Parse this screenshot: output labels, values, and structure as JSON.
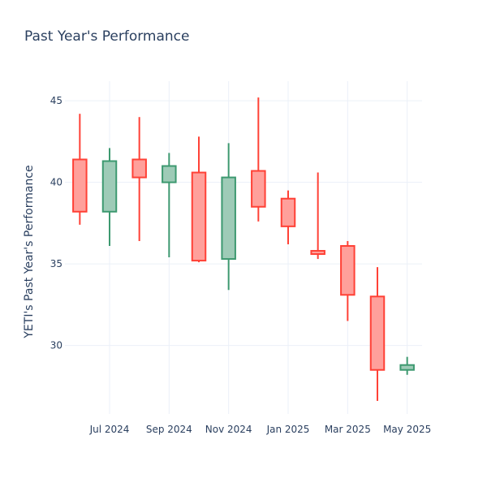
{
  "chart_data": {
    "type": "candlestick",
    "title": "Past Year's Performance",
    "ylabel": "YETI's Past Year's Performance",
    "xlabel": "",
    "ylim": [
      25.8,
      46.2
    ],
    "yticks": [
      30,
      35,
      40,
      45
    ],
    "xticks": [
      {
        "label": "Jul 2024",
        "index": 1
      },
      {
        "label": "Sep 2024",
        "index": 3
      },
      {
        "label": "Nov 2024",
        "index": 5
      },
      {
        "label": "Jan 2025",
        "index": 7
      },
      {
        "label": "Mar 2025",
        "index": 9
      },
      {
        "label": "May 2025",
        "index": 11
      }
    ],
    "grid": true,
    "legend": false,
    "colors": {
      "increasing": "#3d9970",
      "decreasing": "#ff4136",
      "increasing_fill": "#9ecbb7",
      "decreasing_fill": "#ffa09b",
      "grid": "#ebf0f8",
      "text": "#2a3f5f"
    },
    "candles": [
      {
        "period": "Jun 2024",
        "open": 41.4,
        "high": 44.2,
        "low": 37.4,
        "close": 38.2
      },
      {
        "period": "Jul 2024",
        "open": 38.2,
        "high": 42.1,
        "low": 36.1,
        "close": 41.3
      },
      {
        "period": "Aug 2024",
        "open": 41.4,
        "high": 44.0,
        "low": 36.4,
        "close": 40.3
      },
      {
        "period": "Sep 2024",
        "open": 40.0,
        "high": 41.8,
        "low": 35.4,
        "close": 41.0
      },
      {
        "period": "Oct 2024",
        "open": 40.6,
        "high": 42.8,
        "low": 35.1,
        "close": 35.2
      },
      {
        "period": "Nov 2024",
        "open": 35.3,
        "high": 42.4,
        "low": 33.4,
        "close": 40.3
      },
      {
        "period": "Dec 2024",
        "open": 40.7,
        "high": 45.2,
        "low": 37.6,
        "close": 38.5
      },
      {
        "period": "Jan 2025",
        "open": 39.0,
        "high": 39.5,
        "low": 36.2,
        "close": 37.3
      },
      {
        "period": "Feb 2025",
        "open": 35.8,
        "high": 40.6,
        "low": 35.3,
        "close": 35.6
      },
      {
        "period": "Mar 2025",
        "open": 36.1,
        "high": 36.4,
        "low": 31.5,
        "close": 33.1
      },
      {
        "period": "Apr 2025",
        "open": 33.0,
        "high": 34.8,
        "low": 26.6,
        "close": 28.5
      },
      {
        "period": "May 2025",
        "open": 28.5,
        "high": 29.3,
        "low": 28.2,
        "close": 28.8
      }
    ]
  }
}
